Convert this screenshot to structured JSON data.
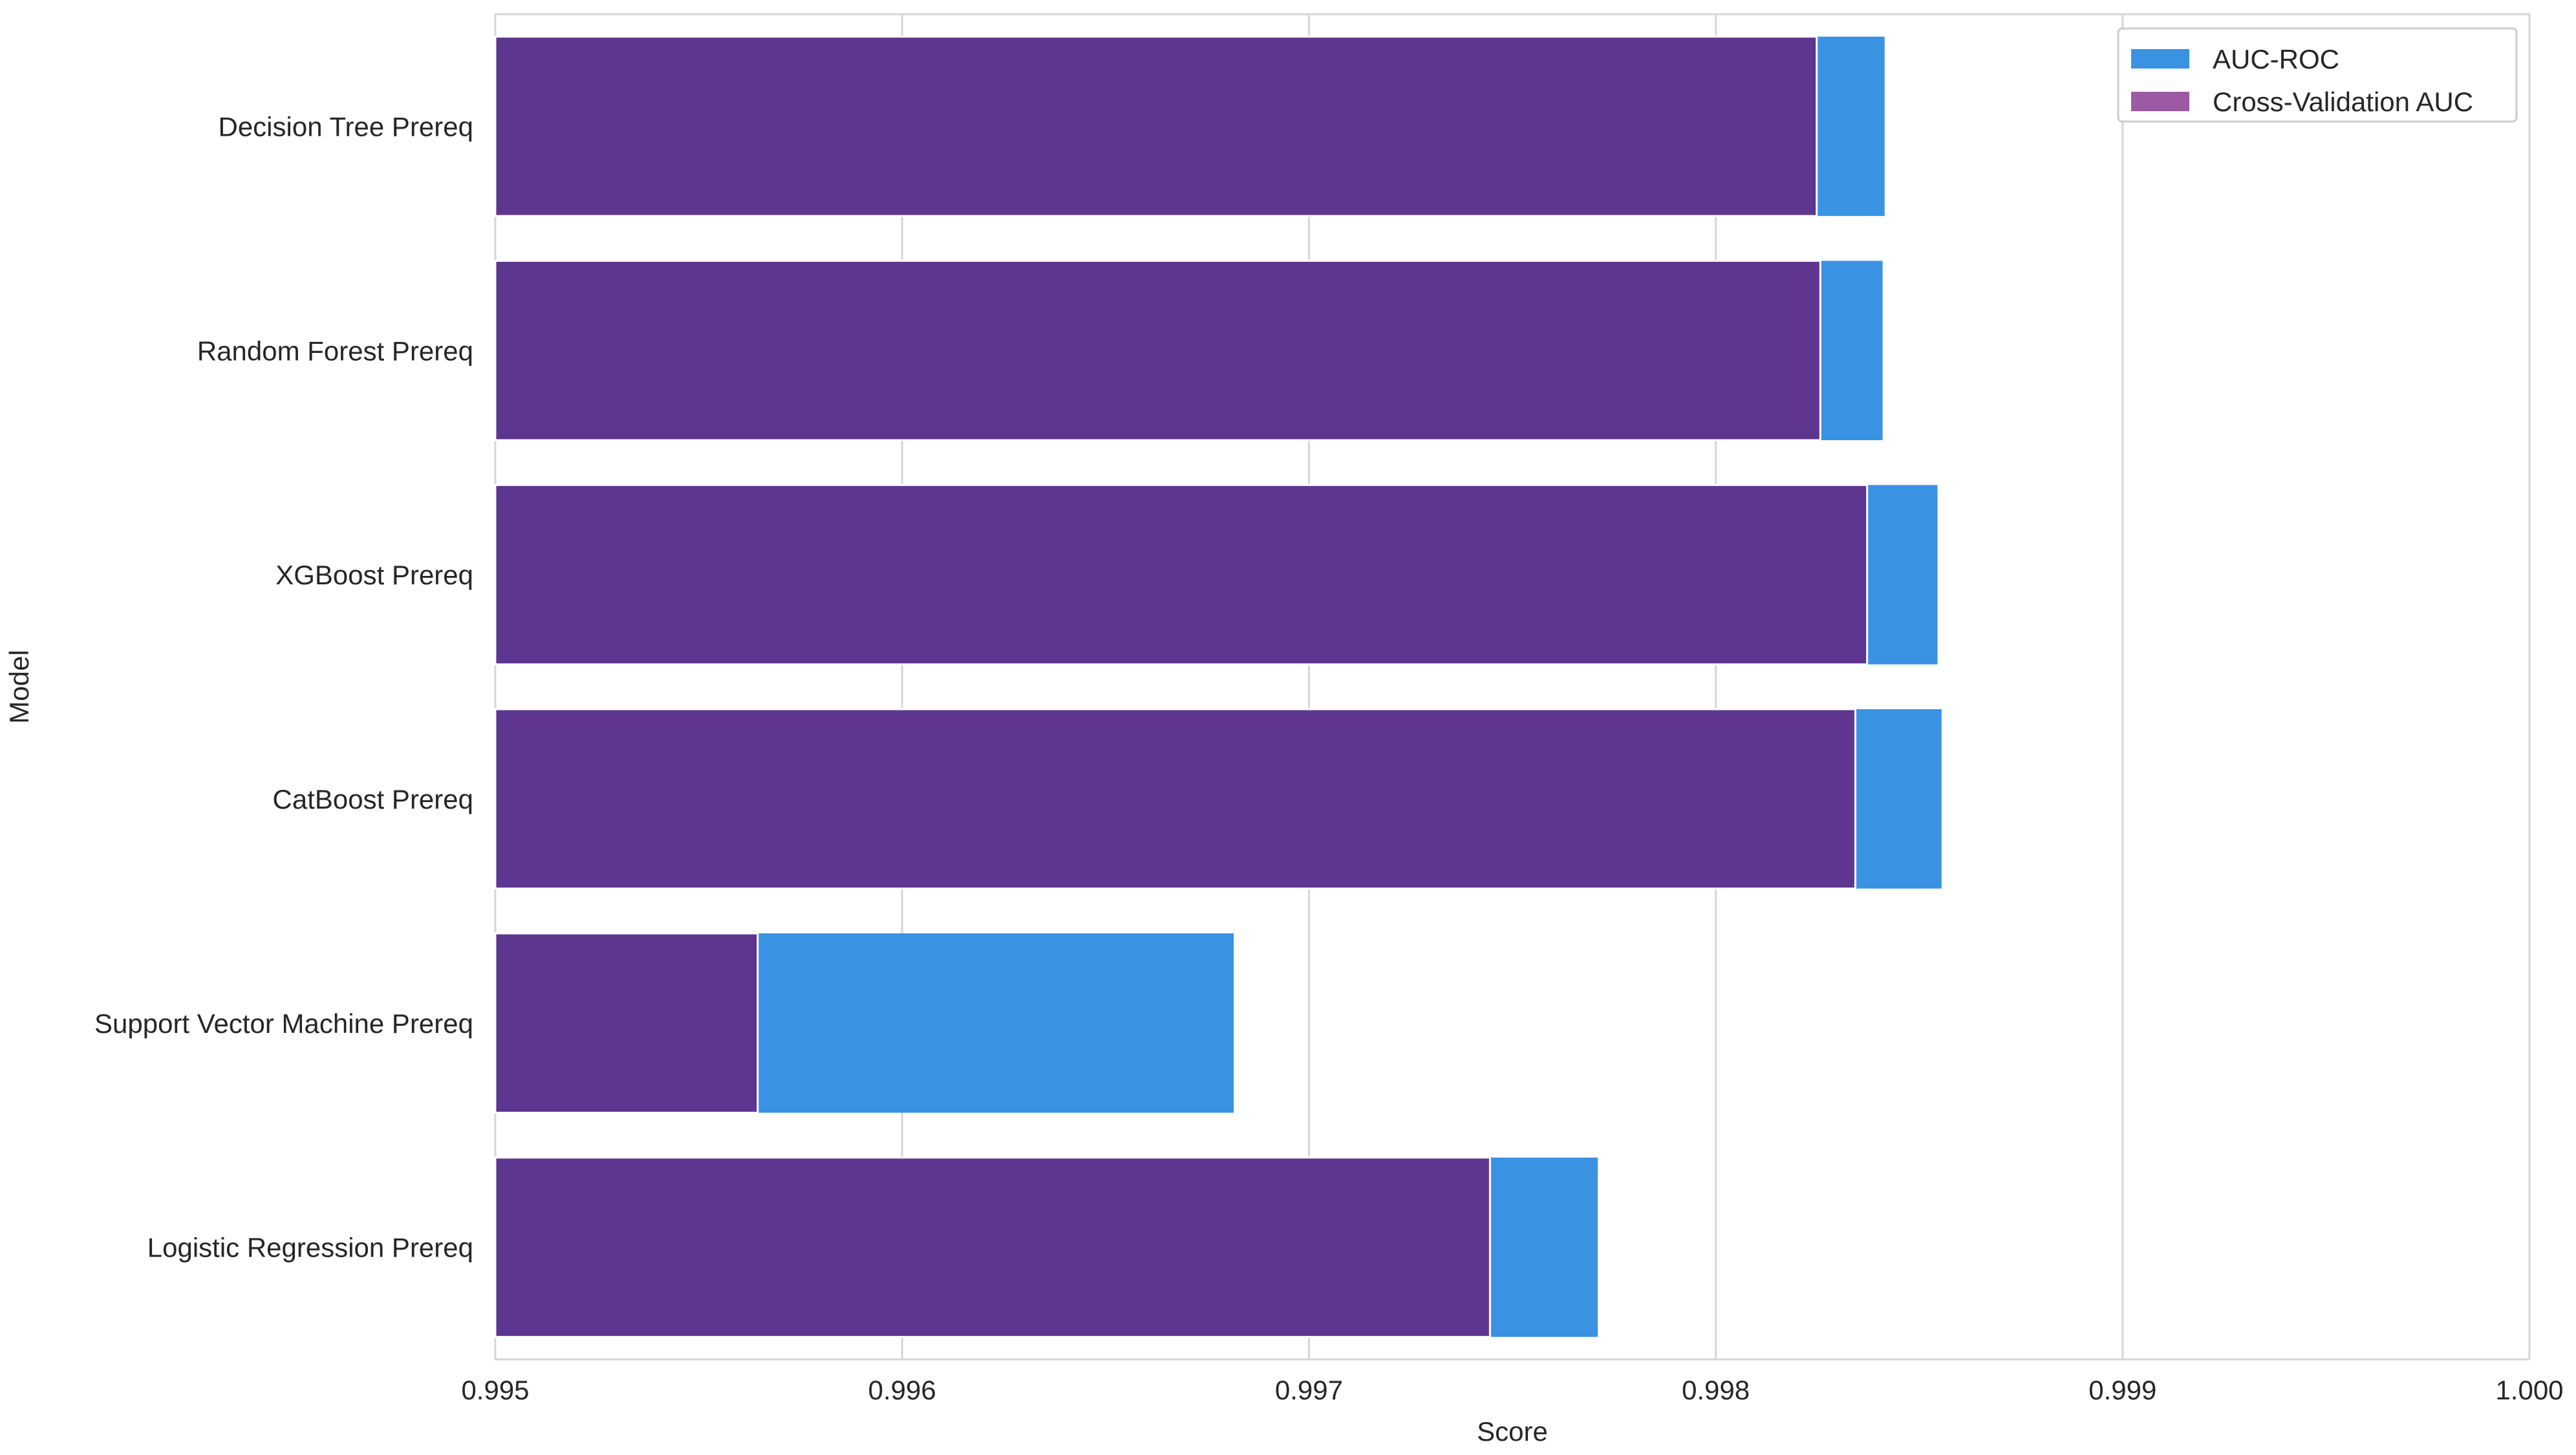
{
  "chart_data": {
    "type": "bar",
    "orientation": "horizontal",
    "categories": [
      "Decision Tree Prereq",
      "Random Forest Prereq",
      "XGBoost Prereq",
      "CatBoost Prereq",
      "Support Vector Machine Prereq",
      "Logistic Regression Prereq"
    ],
    "series": [
      {
        "name": "AUC-ROC",
        "color": "#3a92e3",
        "values": [
          0.998415,
          0.99841,
          0.998545,
          0.998555,
          0.996815,
          0.99771
        ]
      },
      {
        "name": "Cross-Validation AUC",
        "color": "#5e3690",
        "legend_color": "#9b5aa3",
        "values": [
          0.998248,
          0.998257,
          0.998372,
          0.998343,
          0.995645,
          0.997445
        ]
      }
    ],
    "xlabel": "Score",
    "ylabel": "Model",
    "xlim": [
      0.995,
      1.0
    ],
    "xticks": [
      "0.995",
      "0.996",
      "0.997",
      "0.998",
      "0.999",
      "1.000"
    ],
    "grid": true,
    "legend_position": "top-right"
  }
}
